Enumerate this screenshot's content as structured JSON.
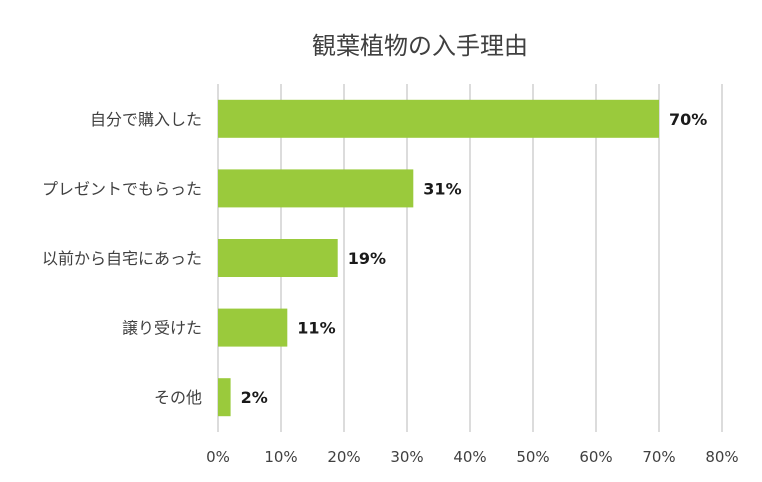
{
  "chart_data": {
    "type": "bar",
    "orientation": "horizontal",
    "title": "観葉植物の入手理由",
    "categories": [
      "自分で購入した",
      "プレゼントでもらった",
      "以前から自宅にあった",
      "譲り受けた",
      "その他"
    ],
    "values": [
      70,
      31,
      19,
      11,
      2
    ],
    "data_labels": [
      "70%",
      "31%",
      "19%",
      "11%",
      "2%"
    ],
    "x_ticks": [
      0,
      10,
      20,
      30,
      40,
      50,
      60,
      70,
      80
    ],
    "x_tick_labels": [
      "0%",
      "10%",
      "20%",
      "30%",
      "40%",
      "50%",
      "60%",
      "70%",
      "80%"
    ],
    "xlim": [
      0,
      80
    ],
    "xlabel": "",
    "ylabel": "",
    "grid": "vertical",
    "legend": "none",
    "bar_color": "#9ACA3C"
  }
}
